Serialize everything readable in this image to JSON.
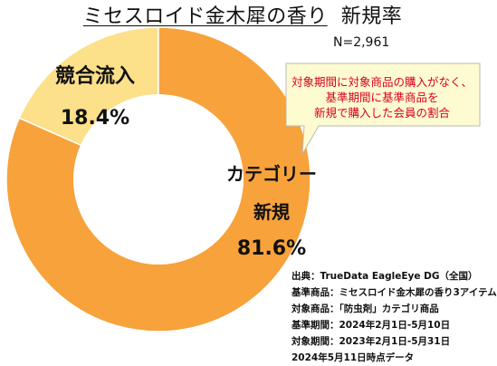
{
  "title": "ミセスロイド金木犀の香り",
  "subtitle": "新規率",
  "n_label": "N=2,961",
  "callout_lines": [
    "対象期間に対象商品の購入がなく、",
    "基準期間に基準商品を",
    "新規で購入した会員の割合"
  ],
  "notes": [
    "出典：TrueData EagleEye DG（全国）",
    "基準商品：ミセスロイド金木犀の香り3アイテム",
    "対象商品：「防虫剤」カテゴリ商品",
    "基準期間：2024年2月1日-5月10日",
    "対象期間：2023年2月1日-5月31日",
    "2024年5月11日時点データ"
  ],
  "chart_data": {
    "type": "pie",
    "donut": true,
    "slices": [
      {
        "name": "競合流入",
        "value": 18.4,
        "label": "18.4%",
        "color": "#FCE08A"
      },
      {
        "name_lines": [
          "カテゴリー",
          "新規"
        ],
        "value": 81.6,
        "label": "81.6%",
        "color": "#F7A23B"
      }
    ],
    "start_angle_deg": 0,
    "direction": "counterclockwise"
  }
}
